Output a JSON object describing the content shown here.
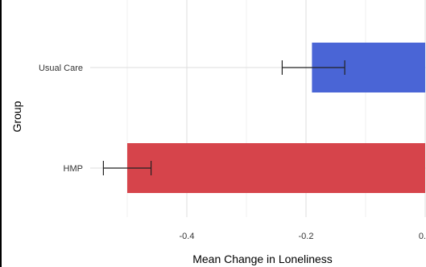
{
  "chart_data": {
    "type": "bar",
    "orientation": "horizontal",
    "categories": [
      "Usual Care",
      "HMP"
    ],
    "values": [
      -0.19,
      -0.5
    ],
    "error_low": [
      -0.24,
      -0.54
    ],
    "error_high": [
      -0.135,
      -0.46
    ],
    "colors": [
      "#4a65d6",
      "#d6444b"
    ],
    "xlabel": "Mean Change in Loneliness",
    "ylabel": "Group",
    "xlim": [
      -0.555,
      0.0
    ],
    "xticks": [
      -0.4,
      -0.2,
      0.0
    ],
    "xtick_labels": [
      "-0.4",
      "-0.2",
      "0."
    ],
    "grid": true
  }
}
